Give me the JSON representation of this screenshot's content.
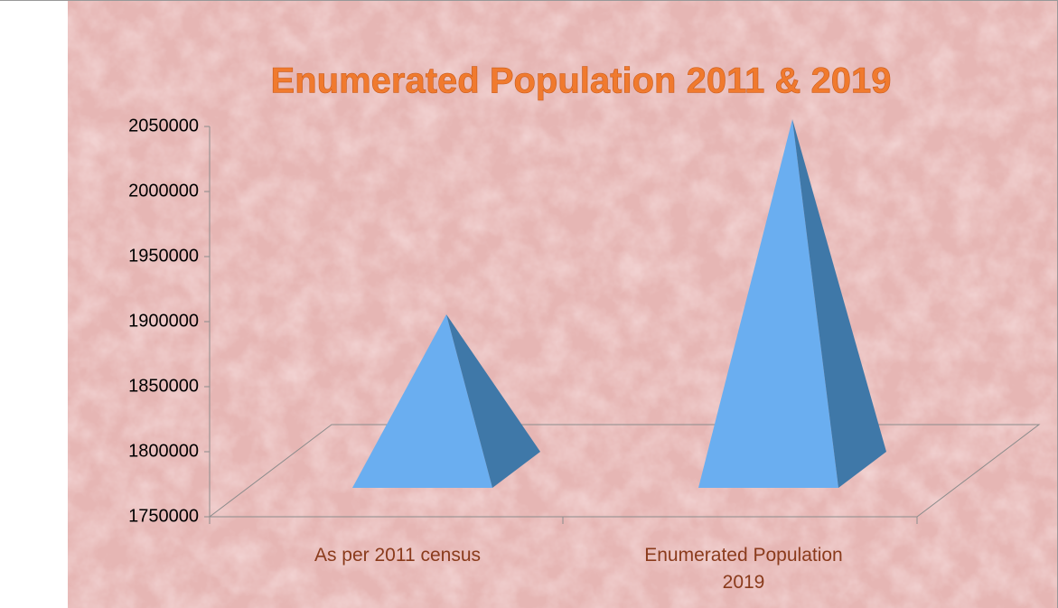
{
  "chart_data": {
    "type": "pyramid",
    "title": "Enumerated Population  2011 & 2019",
    "categories": [
      "As per 2011 census",
      "Enumerated Population 2019"
    ],
    "values": [
      1900000,
      2050000
    ],
    "color": "#6aaef0",
    "ylim": [
      1750000,
      2050000
    ],
    "yticks": [
      1750000,
      1800000,
      1850000,
      1900000,
      1950000,
      2000000,
      2050000
    ]
  }
}
